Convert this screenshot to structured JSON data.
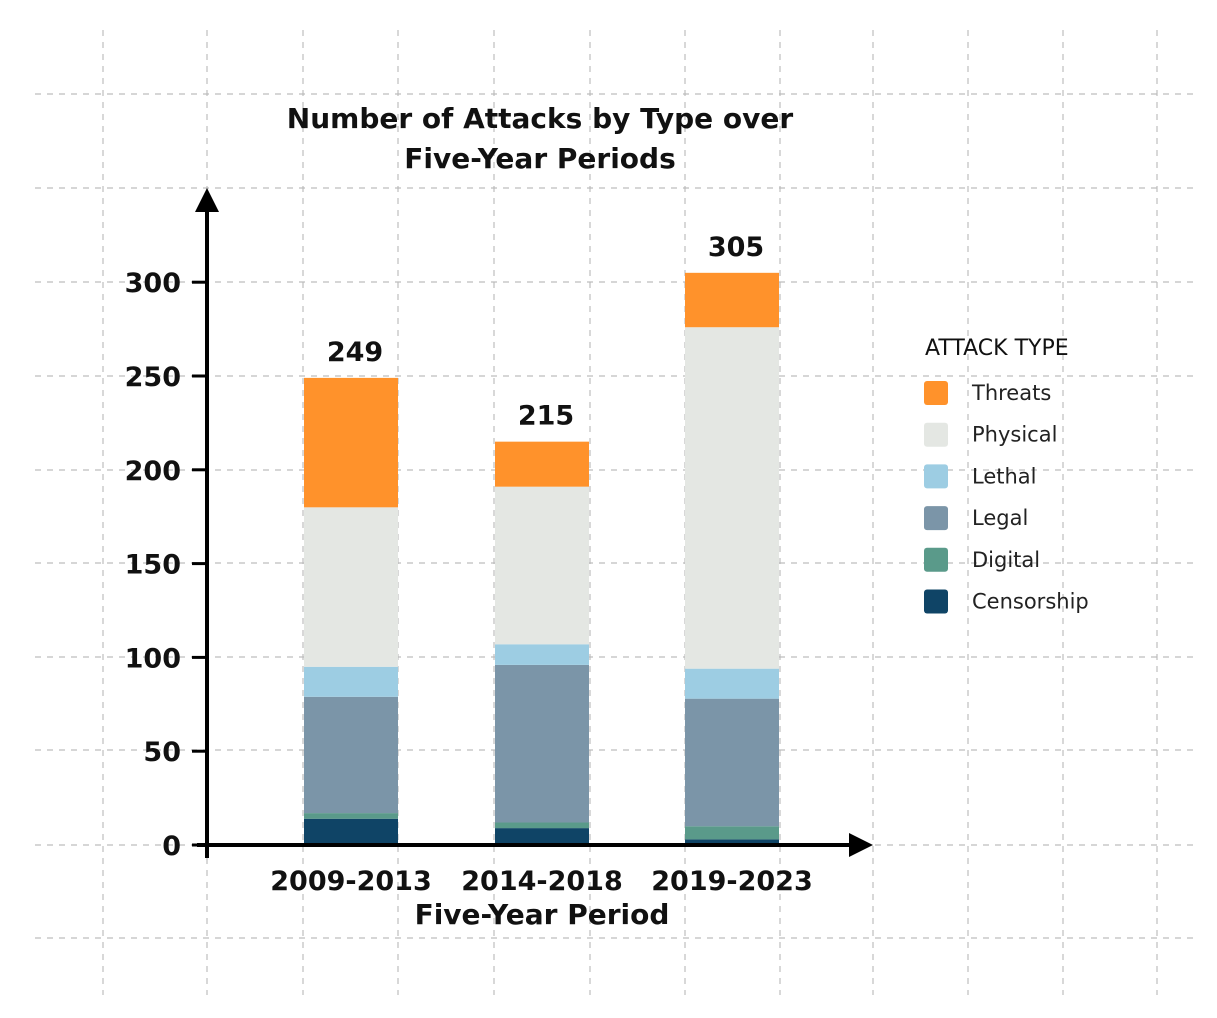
{
  "chart_data": {
    "type": "bar",
    "stacked": true,
    "title": "Number of Attacks by Type over Five-Year Periods",
    "title_lines": [
      "Number of Attacks by Type over",
      "Five-Year Periods"
    ],
    "xlabel": "Five-Year Period",
    "ylabel": "",
    "categories": [
      "2009-2013",
      "2014-2018",
      "2019-2023"
    ],
    "ylim": [
      0,
      330
    ],
    "yticks": [
      0,
      50,
      100,
      150,
      200,
      250,
      300
    ],
    "totals": [
      249,
      215,
      305
    ],
    "grid": true,
    "legend_title": "ATTACK TYPE",
    "legend_position": "right",
    "series": [
      {
        "name": "Censorship",
        "color": "#0f4466",
        "values": [
          14,
          9,
          3
        ]
      },
      {
        "name": "Digital",
        "color": "#5a9a8a",
        "values": [
          3,
          3,
          7
        ]
      },
      {
        "name": "Legal",
        "color": "#7b95a8",
        "values": [
          62,
          84,
          68
        ]
      },
      {
        "name": "Lethal",
        "color": "#9dcde3",
        "values": [
          16,
          11,
          16
        ]
      },
      {
        "name": "Physical",
        "color": "#e4e7e3",
        "values": [
          85,
          84,
          182
        ]
      },
      {
        "name": "Threats",
        "color": "#ff922b",
        "values": [
          69,
          24,
          29
        ]
      }
    ],
    "legend_order": [
      "Threats",
      "Physical",
      "Lethal",
      "Legal",
      "Digital",
      "Censorship"
    ]
  }
}
